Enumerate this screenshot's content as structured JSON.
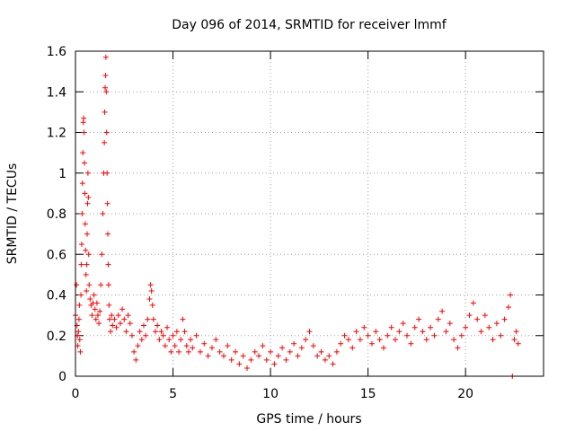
{
  "chart_data": {
    "type": "scatter",
    "title": "Day 096 of 2014, SRMTID for receiver lmmf",
    "xlabel": "GPS time / hours",
    "ylabel": "SRMTID / TECUs",
    "xlim": [
      0,
      24
    ],
    "ylim": [
      0,
      1.6
    ],
    "xticks": [
      0,
      5,
      10,
      15,
      20
    ],
    "xtick_labels": [
      "0",
      "5",
      "10",
      "15",
      "20"
    ],
    "yticks": [
      0,
      0.2,
      0.4,
      0.6,
      0.8,
      1,
      1.2,
      1.4,
      1.6
    ],
    "ytick_labels": [
      "0",
      "0.2",
      "0.4",
      "0.6",
      "0.8",
      "1",
      "1.2",
      "1.4",
      "1.6"
    ],
    "grid": true,
    "marker": "+",
    "color": "#ff0000",
    "series": [
      {
        "name": "SRMTID",
        "points": [
          [
            0.0,
            0.3
          ],
          [
            0.05,
            0.45
          ],
          [
            0.08,
            0.25
          ],
          [
            0.1,
            0.2
          ],
          [
            0.12,
            0.15
          ],
          [
            0.15,
            0.22
          ],
          [
            0.18,
            0.28
          ],
          [
            0.2,
            0.35
          ],
          [
            0.22,
            0.18
          ],
          [
            0.25,
            0.12
          ],
          [
            0.28,
            0.4
          ],
          [
            0.3,
            0.55
          ],
          [
            0.32,
            0.65
          ],
          [
            0.34,
            0.8
          ],
          [
            0.36,
            0.95
          ],
          [
            0.38,
            1.1
          ],
          [
            0.4,
            1.25
          ],
          [
            0.42,
            1.27
          ],
          [
            0.44,
            1.2
          ],
          [
            0.46,
            1.05
          ],
          [
            0.48,
            0.9
          ],
          [
            0.5,
            0.75
          ],
          [
            0.52,
            0.62
          ],
          [
            0.54,
            0.5
          ],
          [
            0.56,
            0.42
          ],
          [
            0.58,
            0.55
          ],
          [
            0.6,
            0.7
          ],
          [
            0.62,
            0.85
          ],
          [
            0.64,
            1.0
          ],
          [
            0.66,
            0.88
          ],
          [
            0.68,
            0.6
          ],
          [
            0.7,
            0.45
          ],
          [
            0.75,
            0.38
          ],
          [
            0.8,
            0.35
          ],
          [
            0.85,
            0.3
          ],
          [
            0.9,
            0.36
          ],
          [
            0.95,
            0.4
          ],
          [
            1.0,
            0.33
          ],
          [
            1.05,
            0.28
          ],
          [
            1.1,
            0.36
          ],
          [
            1.15,
            0.3
          ],
          [
            1.2,
            0.26
          ],
          [
            1.25,
            0.32
          ],
          [
            1.3,
            0.45
          ],
          [
            1.35,
            0.6
          ],
          [
            1.4,
            0.8
          ],
          [
            1.45,
            1.0
          ],
          [
            1.48,
            1.15
          ],
          [
            1.5,
            1.3
          ],
          [
            1.52,
            1.42
          ],
          [
            1.54,
            1.48
          ],
          [
            1.56,
            1.57
          ],
          [
            1.58,
            1.4
          ],
          [
            1.6,
            1.2
          ],
          [
            1.62,
            1.0
          ],
          [
            1.64,
            0.85
          ],
          [
            1.66,
            0.7
          ],
          [
            1.68,
            0.55
          ],
          [
            1.7,
            0.45
          ],
          [
            1.72,
            0.35
          ],
          [
            1.75,
            0.28
          ],
          [
            1.8,
            0.22
          ],
          [
            1.85,
            0.3
          ],
          [
            1.9,
            0.25
          ],
          [
            2.0,
            0.28
          ],
          [
            2.1,
            0.24
          ],
          [
            2.2,
            0.3
          ],
          [
            2.3,
            0.26
          ],
          [
            2.4,
            0.33
          ],
          [
            2.5,
            0.28
          ],
          [
            2.6,
            0.22
          ],
          [
            2.7,
            0.3
          ],
          [
            2.8,
            0.26
          ],
          [
            2.9,
            0.2
          ],
          [
            3.0,
            0.12
          ],
          [
            3.1,
            0.08
          ],
          [
            3.2,
            0.15
          ],
          [
            3.3,
            0.22
          ],
          [
            3.4,
            0.18
          ],
          [
            3.5,
            0.25
          ],
          [
            3.6,
            0.2
          ],
          [
            3.7,
            0.28
          ],
          [
            3.8,
            0.38
          ],
          [
            3.85,
            0.45
          ],
          [
            3.9,
            0.42
          ],
          [
            3.95,
            0.35
          ],
          [
            4.0,
            0.28
          ],
          [
            4.1,
            0.22
          ],
          [
            4.2,
            0.25
          ],
          [
            4.3,
            0.18
          ],
          [
            4.4,
            0.22
          ],
          [
            4.5,
            0.2
          ],
          [
            4.6,
            0.15
          ],
          [
            4.7,
            0.24
          ],
          [
            4.8,
            0.18
          ],
          [
            4.9,
            0.12
          ],
          [
            5.0,
            0.2
          ],
          [
            5.1,
            0.15
          ],
          [
            5.2,
            0.22
          ],
          [
            5.3,
            0.12
          ],
          [
            5.4,
            0.18
          ],
          [
            5.5,
            0.28
          ],
          [
            5.6,
            0.22
          ],
          [
            5.7,
            0.15
          ],
          [
            5.8,
            0.12
          ],
          [
            5.9,
            0.18
          ],
          [
            6.0,
            0.14
          ],
          [
            6.2,
            0.2
          ],
          [
            6.4,
            0.12
          ],
          [
            6.6,
            0.16
          ],
          [
            6.8,
            0.1
          ],
          [
            7.0,
            0.14
          ],
          [
            7.2,
            0.18
          ],
          [
            7.4,
            0.12
          ],
          [
            7.6,
            0.1
          ],
          [
            7.8,
            0.15
          ],
          [
            8.0,
            0.08
          ],
          [
            8.2,
            0.12
          ],
          [
            8.4,
            0.06
          ],
          [
            8.6,
            0.1
          ],
          [
            8.8,
            0.04
          ],
          [
            9.0,
            0.08
          ],
          [
            9.2,
            0.12
          ],
          [
            9.4,
            0.1
          ],
          [
            9.6,
            0.15
          ],
          [
            9.8,
            0.08
          ],
          [
            10.0,
            0.12
          ],
          [
            10.2,
            0.06
          ],
          [
            10.4,
            0.1
          ],
          [
            10.6,
            0.14
          ],
          [
            10.8,
            0.08
          ],
          [
            11.0,
            0.12
          ],
          [
            11.2,
            0.16
          ],
          [
            11.4,
            0.1
          ],
          [
            11.6,
            0.14
          ],
          [
            11.8,
            0.18
          ],
          [
            12.0,
            0.22
          ],
          [
            12.2,
            0.15
          ],
          [
            12.4,
            0.1
          ],
          [
            12.6,
            0.12
          ],
          [
            12.8,
            0.08
          ],
          [
            13.0,
            0.1
          ],
          [
            13.2,
            0.06
          ],
          [
            13.4,
            0.12
          ],
          [
            13.6,
            0.16
          ],
          [
            13.8,
            0.2
          ],
          [
            14.0,
            0.18
          ],
          [
            14.2,
            0.14
          ],
          [
            14.4,
            0.22
          ],
          [
            14.6,
            0.18
          ],
          [
            14.8,
            0.24
          ],
          [
            15.0,
            0.2
          ],
          [
            15.2,
            0.16
          ],
          [
            15.4,
            0.22
          ],
          [
            15.6,
            0.18
          ],
          [
            15.8,
            0.14
          ],
          [
            16.0,
            0.2
          ],
          [
            16.2,
            0.24
          ],
          [
            16.4,
            0.18
          ],
          [
            16.6,
            0.22
          ],
          [
            16.8,
            0.26
          ],
          [
            17.0,
            0.2
          ],
          [
            17.2,
            0.16
          ],
          [
            17.4,
            0.24
          ],
          [
            17.6,
            0.28
          ],
          [
            17.8,
            0.22
          ],
          [
            18.0,
            0.18
          ],
          [
            18.2,
            0.24
          ],
          [
            18.4,
            0.2
          ],
          [
            18.6,
            0.28
          ],
          [
            18.8,
            0.32
          ],
          [
            19.0,
            0.22
          ],
          [
            19.2,
            0.26
          ],
          [
            19.4,
            0.18
          ],
          [
            19.6,
            0.14
          ],
          [
            19.8,
            0.2
          ],
          [
            20.0,
            0.24
          ],
          [
            20.2,
            0.3
          ],
          [
            20.4,
            0.36
          ],
          [
            20.6,
            0.28
          ],
          [
            20.8,
            0.22
          ],
          [
            21.0,
            0.3
          ],
          [
            21.2,
            0.24
          ],
          [
            21.4,
            0.18
          ],
          [
            21.6,
            0.26
          ],
          [
            21.8,
            0.2
          ],
          [
            22.0,
            0.28
          ],
          [
            22.2,
            0.34
          ],
          [
            22.3,
            0.4
          ],
          [
            22.4,
            0.0
          ],
          [
            22.5,
            0.18
          ],
          [
            22.6,
            0.22
          ],
          [
            22.7,
            0.16
          ]
        ]
      }
    ]
  }
}
